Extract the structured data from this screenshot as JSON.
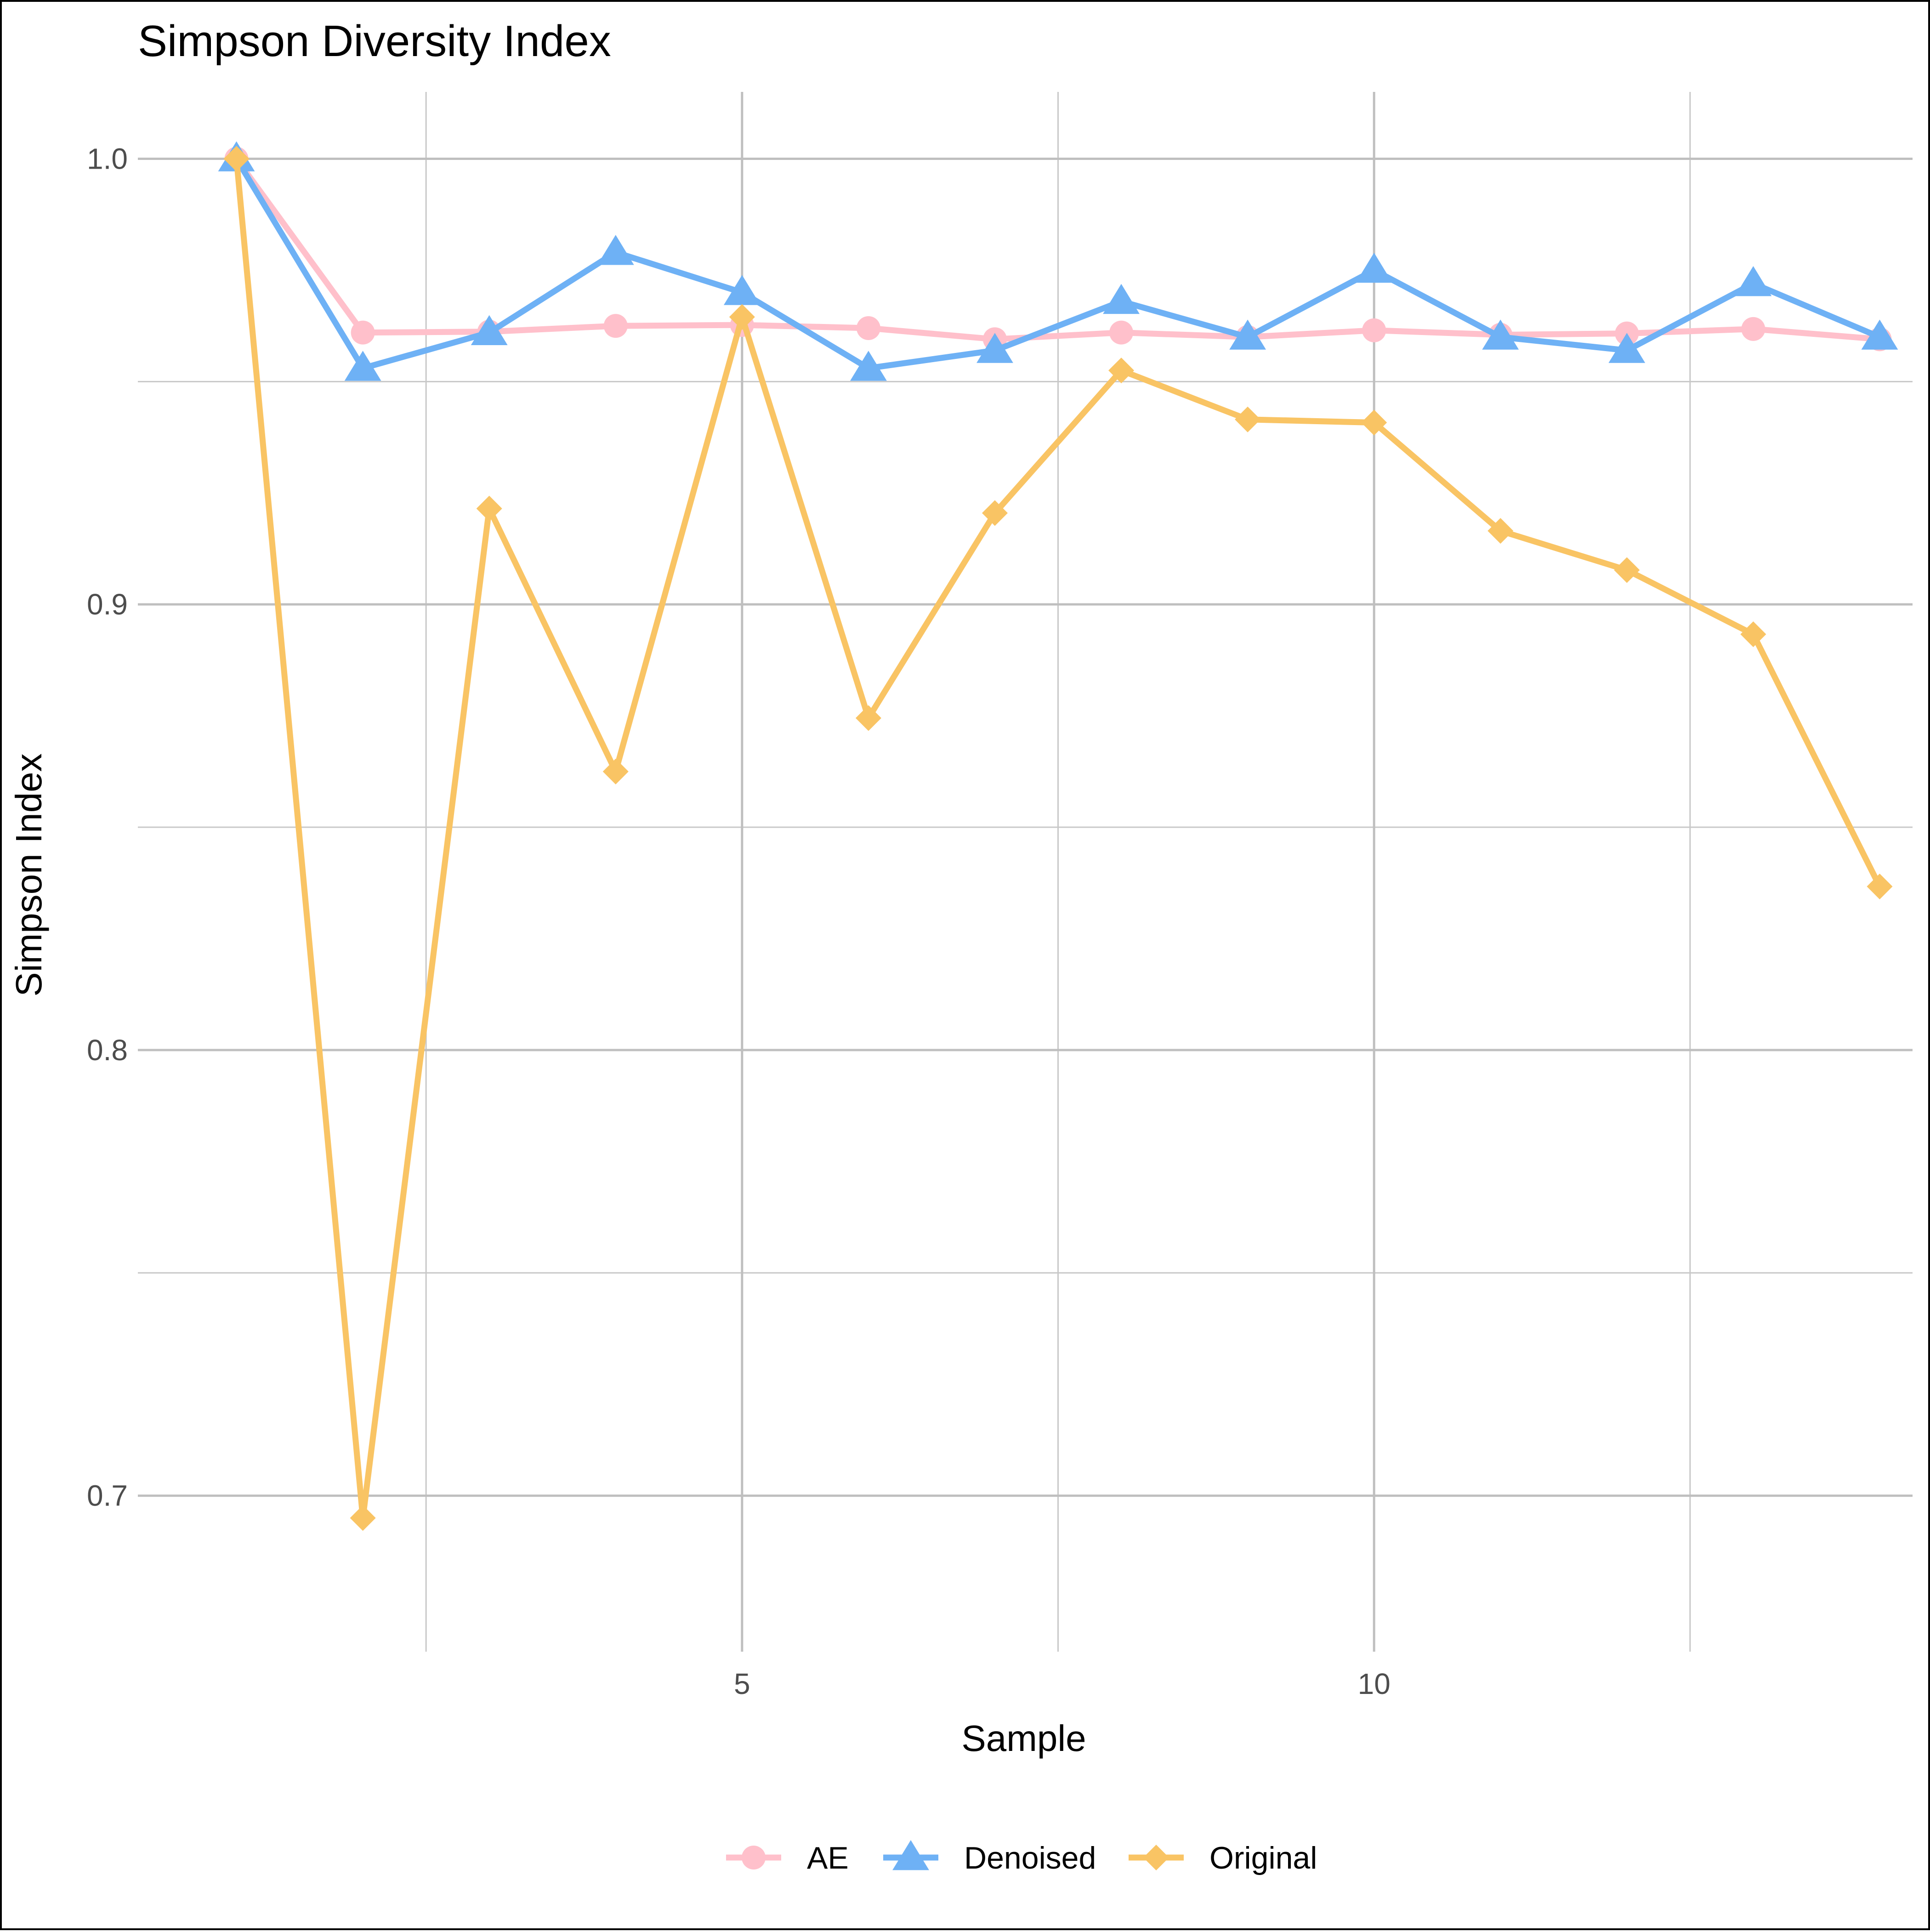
{
  "chart_data": {
    "type": "line",
    "title": "Simpson Diversity Index",
    "xlabel": "Sample",
    "ylabel": "Simpson Index",
    "xlim": [
      0.22,
      14.26
    ],
    "ylim": [
      0.665,
      1.015
    ],
    "x_ticks": [
      5,
      10
    ],
    "x_tick_labels": [
      "5",
      "10"
    ],
    "y_ticks": [
      0.7,
      0.8,
      0.9,
      1.0
    ],
    "y_tick_labels": [
      "0.7",
      "0.8",
      "0.9",
      "1.0"
    ],
    "grid": true,
    "legend_position": "bottom",
    "x": [
      1,
      2,
      3,
      4,
      5,
      6,
      7,
      8,
      9,
      10,
      11,
      12,
      13,
      14
    ],
    "series": [
      {
        "name": "AE",
        "color": "#FFC0CB",
        "marker": "circle",
        "values": [
          1.0,
          0.961,
          0.9612,
          0.9625,
          0.9627,
          0.962,
          0.9595,
          0.961,
          0.96,
          0.9615,
          0.9605,
          0.9608,
          0.9618,
          0.9595
        ]
      },
      {
        "name": "Denoised",
        "color": "#6EB1F5",
        "marker": "triangle",
        "values": [
          1.0,
          0.953,
          0.961,
          0.979,
          0.97,
          0.953,
          0.957,
          0.968,
          0.96,
          0.975,
          0.96,
          0.957,
          0.972,
          0.96
        ]
      },
      {
        "name": "Original",
        "color": "#F9C464",
        "marker": "diamond",
        "values": [
          1.0,
          0.695,
          0.9215,
          0.8625,
          0.9645,
          0.8745,
          0.9205,
          0.9525,
          0.9415,
          0.9408,
          0.9165,
          0.9077,
          0.8933,
          0.8367
        ]
      }
    ]
  }
}
